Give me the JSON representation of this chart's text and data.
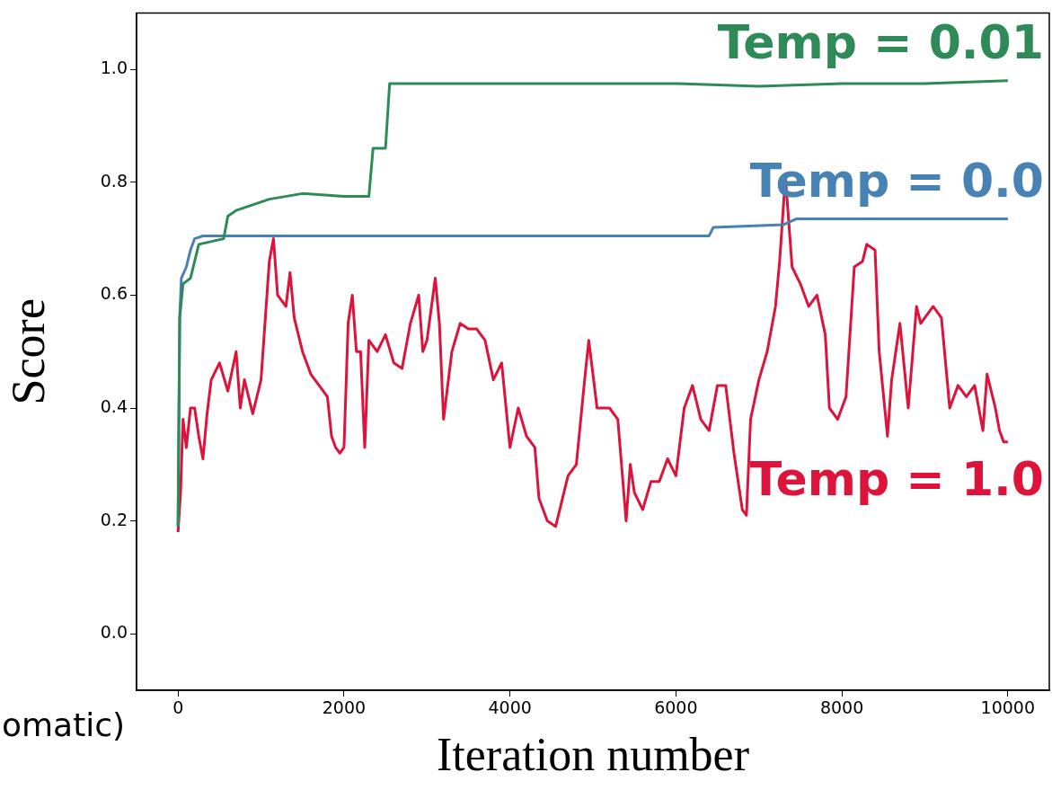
{
  "chart_data": {
    "type": "line",
    "xlabel": "Iteration number",
    "ylabel": "Score",
    "xlim": [
      -500,
      10500
    ],
    "ylim": [
      -0.1,
      1.1
    ],
    "xticks": [
      0,
      2000,
      4000,
      6000,
      8000,
      10000
    ],
    "yticks": [
      {
        "value": 0,
        "label": "0.0"
      },
      {
        "value": 0.2,
        "label": "0.2"
      },
      {
        "value": 0.4,
        "label": "0.4"
      },
      {
        "value": 0.6,
        "label": "0.6"
      },
      {
        "value": 0.8,
        "label": "0.8"
      },
      {
        "value": 1,
        "label": "1.0"
      }
    ],
    "grid": false,
    "legend": false,
    "marker": "none",
    "line_style": "solid",
    "annotations": [
      "omatic)"
    ],
    "series": [
      {
        "name": "Temp = 0.01",
        "color": "#2e8b57",
        "x": [
          0,
          20,
          60,
          150,
          250,
          550,
          600,
          700,
          1100,
          1500,
          2000,
          2300,
          2350,
          2500,
          2550,
          3500,
          4500,
          6000,
          7000,
          8000,
          9000,
          10000
        ],
        "values": [
          0.19,
          0.56,
          0.62,
          0.63,
          0.69,
          0.7,
          0.74,
          0.75,
          0.77,
          0.78,
          0.775,
          0.775,
          0.86,
          0.86,
          0.975,
          0.975,
          0.975,
          0.975,
          0.97,
          0.975,
          0.975,
          0.98
        ]
      },
      {
        "name": "Temp = 0.0",
        "color": "#4682b4",
        "x": [
          0,
          20,
          40,
          100,
          150,
          200,
          300,
          6400,
          6450,
          7300,
          7450,
          10000
        ],
        "values": [
          0.19,
          0.56,
          0.63,
          0.65,
          0.68,
          0.7,
          0.705,
          0.705,
          0.72,
          0.725,
          0.735,
          0.735
        ]
      },
      {
        "name": "Temp = 1.0",
        "color": "#dc143c",
        "x": [
          0,
          30,
          60,
          100,
          150,
          200,
          250,
          300,
          350,
          400,
          500,
          600,
          700,
          750,
          800,
          900,
          1000,
          1100,
          1150,
          1200,
          1300,
          1350,
          1400,
          1500,
          1600,
          1700,
          1800,
          1850,
          1900,
          1950,
          2000,
          2050,
          2100,
          2150,
          2200,
          2250,
          2300,
          2400,
          2500,
          2600,
          2700,
          2800,
          2900,
          2950,
          3000,
          3100,
          3150,
          3200,
          3300,
          3400,
          3500,
          3600,
          3700,
          3800,
          3900,
          4000,
          4100,
          4200,
          4300,
          4350,
          4450,
          4550,
          4600,
          4700,
          4800,
          4900,
          4950,
          5050,
          5200,
          5300,
          5400,
          5450,
          5500,
          5600,
          5700,
          5800,
          5900,
          6000,
          6100,
          6200,
          6300,
          6400,
          6500,
          6600,
          6700,
          6800,
          6850,
          6900,
          7000,
          7100,
          7200,
          7250,
          7320,
          7400,
          7500,
          7600,
          7700,
          7800,
          7850,
          7950,
          8050,
          8150,
          8250,
          8300,
          8400,
          8450,
          8550,
          8600,
          8700,
          8800,
          8900,
          8950,
          9100,
          9200,
          9300,
          9400,
          9500,
          9600,
          9700,
          9750,
          9850,
          9900,
          9950,
          10000
        ],
        "values": [
          0.18,
          0.25,
          0.38,
          0.33,
          0.4,
          0.4,
          0.35,
          0.31,
          0.39,
          0.45,
          0.48,
          0.43,
          0.5,
          0.4,
          0.45,
          0.39,
          0.45,
          0.66,
          0.7,
          0.6,
          0.58,
          0.64,
          0.56,
          0.5,
          0.46,
          0.44,
          0.42,
          0.35,
          0.33,
          0.32,
          0.33,
          0.55,
          0.6,
          0.5,
          0.5,
          0.33,
          0.52,
          0.5,
          0.53,
          0.48,
          0.47,
          0.55,
          0.6,
          0.5,
          0.52,
          0.63,
          0.55,
          0.38,
          0.5,
          0.55,
          0.54,
          0.54,
          0.52,
          0.45,
          0.48,
          0.33,
          0.4,
          0.35,
          0.33,
          0.24,
          0.2,
          0.19,
          0.22,
          0.28,
          0.3,
          0.45,
          0.52,
          0.4,
          0.4,
          0.38,
          0.2,
          0.3,
          0.25,
          0.22,
          0.27,
          0.27,
          0.31,
          0.28,
          0.4,
          0.44,
          0.38,
          0.36,
          0.44,
          0.44,
          0.32,
          0.22,
          0.21,
          0.38,
          0.45,
          0.5,
          0.58,
          0.66,
          0.81,
          0.65,
          0.62,
          0.58,
          0.6,
          0.53,
          0.4,
          0.38,
          0.42,
          0.65,
          0.66,
          0.69,
          0.68,
          0.5,
          0.35,
          0.45,
          0.55,
          0.4,
          0.58,
          0.55,
          0.58,
          0.56,
          0.4,
          0.44,
          0.42,
          0.44,
          0.36,
          0.46,
          0.4,
          0.36,
          0.34,
          0.34
        ]
      }
    ]
  }
}
